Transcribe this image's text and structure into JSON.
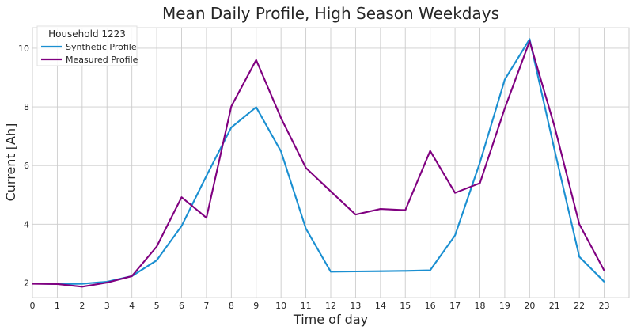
{
  "chart_data": {
    "type": "line",
    "title": "Mean Daily Profile, High Season Weekdays",
    "xlabel": "Time of day",
    "ylabel": "Current [Ah]",
    "x": [
      0,
      1,
      2,
      3,
      4,
      5,
      6,
      7,
      8,
      9,
      10,
      11,
      12,
      13,
      14,
      15,
      16,
      17,
      18,
      19,
      20,
      21,
      22,
      23
    ],
    "xlim": [
      0,
      24
    ],
    "ylim": [
      1.5,
      10.7
    ],
    "yticks": [
      2,
      4,
      6,
      8,
      10
    ],
    "grid": true,
    "legend": {
      "title": "Household 1223",
      "position": "top-left"
    },
    "series": [
      {
        "name": "Synthetic Profile",
        "color": "#1a8fd1",
        "values": [
          1.98,
          1.96,
          1.97,
          2.04,
          2.23,
          2.77,
          3.94,
          5.65,
          7.3,
          7.99,
          6.48,
          3.85,
          2.38,
          2.39,
          2.4,
          2.41,
          2.43,
          3.62,
          6.1,
          8.93,
          10.31,
          6.54,
          2.89,
          2.04
        ]
      },
      {
        "name": "Measured Profile",
        "color": "#800080",
        "values": [
          1.97,
          1.96,
          1.87,
          2.01,
          2.23,
          3.24,
          4.92,
          4.22,
          8.02,
          9.6,
          7.62,
          5.92,
          5.12,
          4.33,
          4.52,
          4.48,
          6.5,
          5.07,
          5.4,
          7.95,
          10.24,
          7.34,
          4.0,
          2.42
        ]
      }
    ]
  }
}
